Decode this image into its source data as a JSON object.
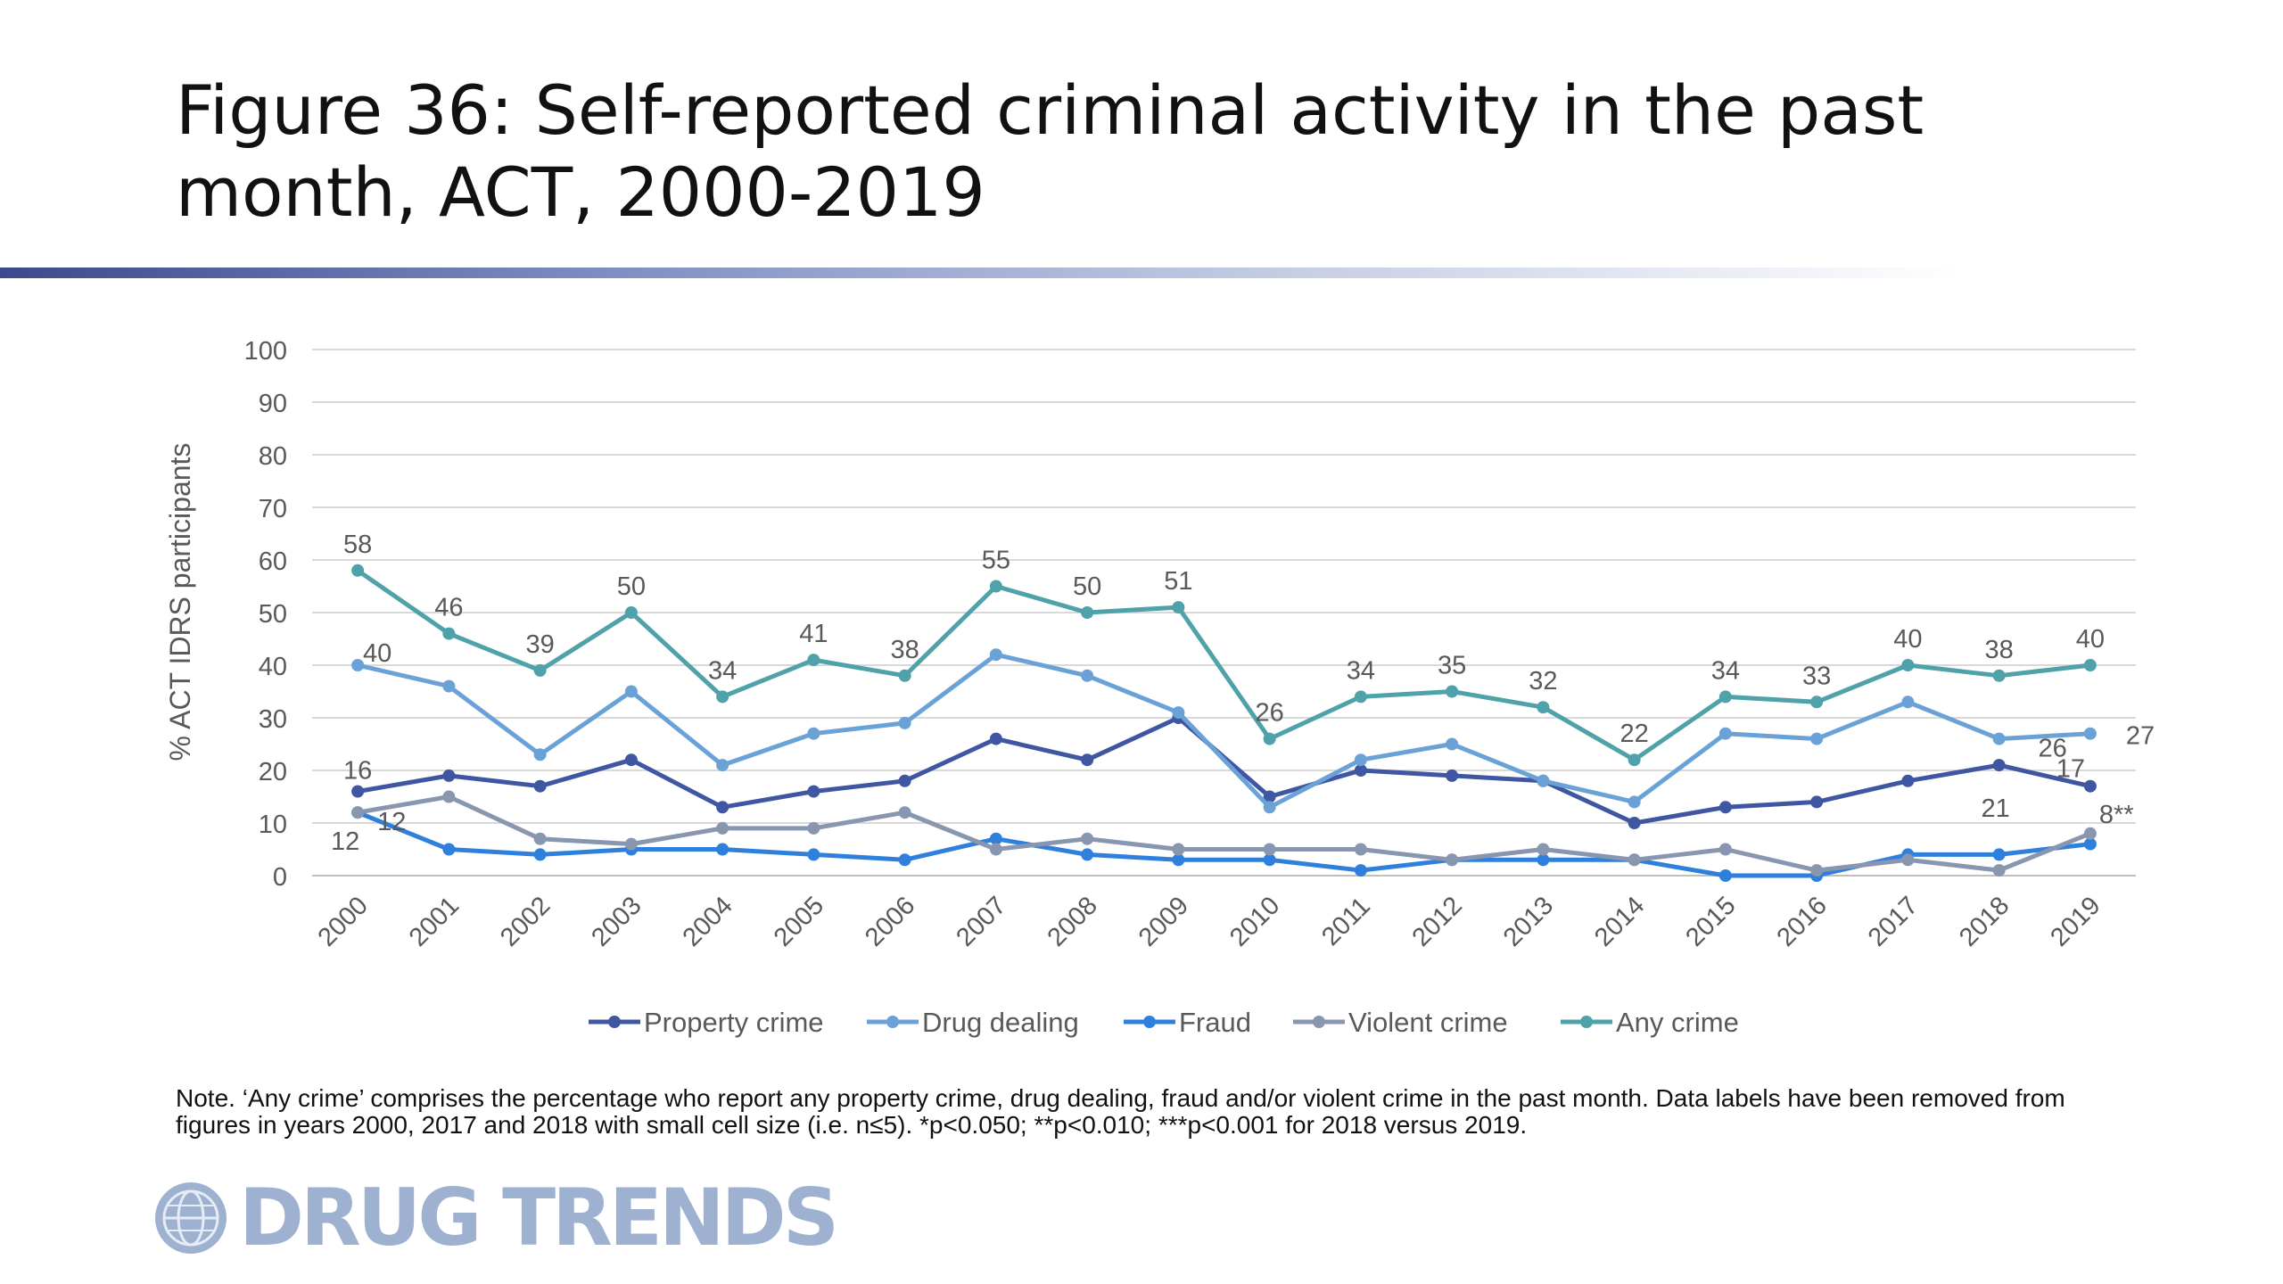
{
  "page_title": "Figure 36: Self-reported criminal activity in the past month, ACT, 2000-2019",
  "note": "Note. ‘Any crime’ comprises the percentage who report any property crime, drug dealing, fraud and/or violent crime in the past month. Data labels have been removed from figures in years 2000, 2017 and 2018 with small cell size (i.e. n≤5). *p<0.050; **p<0.010; ***p<0.001 for 2018 versus 2019.",
  "logo_text": "DRUG TRENDS",
  "colors": {
    "property": "#3f56a3",
    "drug": "#6aa2d8",
    "fraud": "#2f80dd",
    "violent": "#8896b0",
    "any": "#4fa2a9",
    "grid": "#d9d9d9",
    "text": "#595959"
  },
  "chart_data": {
    "type": "line",
    "title": "",
    "xlabel": "",
    "ylabel": "% ACT IDRS participants",
    "ylim": [
      0,
      100
    ],
    "yticks": [
      0,
      10,
      20,
      30,
      40,
      50,
      60,
      70,
      80,
      90,
      100
    ],
    "categories": [
      "2000",
      "2001",
      "2002",
      "2003",
      "2004",
      "2005",
      "2006",
      "2007",
      "2008",
      "2009",
      "2010",
      "2011",
      "2012",
      "2013",
      "2014",
      "2015",
      "2016",
      "2017",
      "2018",
      "2019"
    ],
    "legend_position": "bottom",
    "grid": true,
    "series": [
      {
        "name": "Property crime",
        "color_key": "property",
        "values": [
          16,
          19,
          17,
          22,
          13,
          16,
          18,
          26,
          22,
          30,
          15,
          20,
          19,
          18,
          10,
          13,
          14,
          18,
          21,
          17
        ]
      },
      {
        "name": "Drug dealing",
        "color_key": "drug",
        "values": [
          40,
          36,
          23,
          35,
          21,
          27,
          29,
          42,
          38,
          31,
          13,
          22,
          25,
          18,
          14,
          27,
          26,
          33,
          26,
          27
        ]
      },
      {
        "name": "Fraud",
        "color_key": "fraud",
        "values": [
          12,
          5,
          4,
          5,
          5,
          4,
          3,
          7,
          4,
          3,
          3,
          1,
          3,
          3,
          3,
          0,
          0,
          4,
          4,
          6
        ]
      },
      {
        "name": "Violent crime",
        "color_key": "violent",
        "values": [
          12,
          15,
          7,
          6,
          9,
          9,
          12,
          5,
          7,
          5,
          5,
          5,
          3,
          5,
          3,
          5,
          1,
          3,
          1,
          8
        ]
      },
      {
        "name": "Any crime",
        "color_key": "any",
        "values": [
          58,
          46,
          39,
          50,
          34,
          41,
          38,
          55,
          50,
          51,
          26,
          34,
          35,
          32,
          22,
          34,
          33,
          40,
          38,
          40
        ]
      }
    ],
    "data_labels": [
      {
        "series": "Any crime",
        "index": 0,
        "text": "58"
      },
      {
        "series": "Any crime",
        "index": 1,
        "text": "46"
      },
      {
        "series": "Any crime",
        "index": 2,
        "text": "39"
      },
      {
        "series": "Any crime",
        "index": 3,
        "text": "50"
      },
      {
        "series": "Any crime",
        "index": 4,
        "text": "34"
      },
      {
        "series": "Any crime",
        "index": 5,
        "text": "41"
      },
      {
        "series": "Any crime",
        "index": 6,
        "text": "38"
      },
      {
        "series": "Any crime",
        "index": 7,
        "text": "55"
      },
      {
        "series": "Any crime",
        "index": 8,
        "text": "50"
      },
      {
        "series": "Any crime",
        "index": 9,
        "text": "51"
      },
      {
        "series": "Any crime",
        "index": 10,
        "text": "26"
      },
      {
        "series": "Any crime",
        "index": 11,
        "text": "34"
      },
      {
        "series": "Any crime",
        "index": 12,
        "text": "35"
      },
      {
        "series": "Any crime",
        "index": 13,
        "text": "32"
      },
      {
        "series": "Any crime",
        "index": 14,
        "text": "22"
      },
      {
        "series": "Any crime",
        "index": 15,
        "text": "34"
      },
      {
        "series": "Any crime",
        "index": 16,
        "text": "33"
      },
      {
        "series": "Any crime",
        "index": 17,
        "text": "40"
      },
      {
        "series": "Any crime",
        "index": 18,
        "text": "38"
      },
      {
        "series": "Any crime",
        "index": 19,
        "text": "40"
      },
      {
        "series": "Drug dealing",
        "index": 0,
        "text": "40"
      },
      {
        "series": "Drug dealing",
        "index": 18,
        "text": "26"
      },
      {
        "series": "Drug dealing",
        "index": 19,
        "text": "27"
      },
      {
        "series": "Property crime",
        "index": 0,
        "text": "16"
      },
      {
        "series": "Property crime",
        "index": 18,
        "text": "21"
      },
      {
        "series": "Property crime",
        "index": 19,
        "text": "17"
      },
      {
        "series": "Fraud",
        "index": 0,
        "text": "12"
      },
      {
        "series": "Violent crime",
        "index": 0,
        "text": "12"
      },
      {
        "series": "Violent crime",
        "index": 19,
        "text": "8**"
      }
    ]
  }
}
